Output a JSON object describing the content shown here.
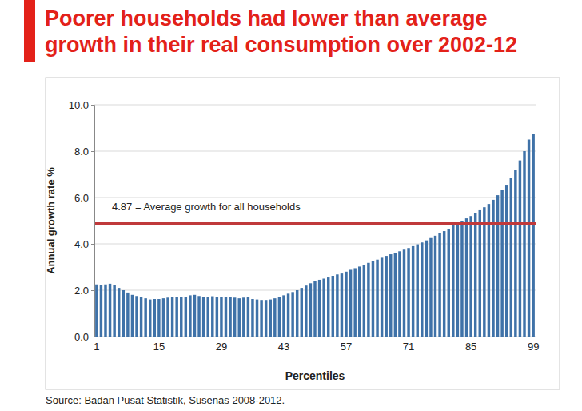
{
  "chart_data": {
    "type": "bar",
    "title": "Poorer households had lower than average growth in their real consumption over 2002-12",
    "x_label": "Percentiles",
    "y_label": "Annual growth rate %",
    "source": "Source: Badan Pusat Statistik, Susenas 2008-2012.",
    "categories": [
      "1",
      null,
      null,
      null,
      null,
      null,
      null,
      null,
      null,
      null,
      null,
      null,
      null,
      null,
      "15",
      null,
      null,
      null,
      null,
      null,
      null,
      null,
      null,
      null,
      null,
      null,
      null,
      null,
      "29",
      null,
      null,
      null,
      null,
      null,
      null,
      null,
      null,
      null,
      null,
      null,
      null,
      null,
      "43",
      null,
      null,
      null,
      null,
      null,
      null,
      null,
      null,
      null,
      null,
      null,
      null,
      null,
      "57",
      null,
      null,
      null,
      null,
      null,
      null,
      null,
      null,
      null,
      null,
      null,
      null,
      null,
      "71",
      null,
      null,
      null,
      null,
      null,
      null,
      null,
      null,
      null,
      null,
      null,
      null,
      null,
      "85",
      null,
      null,
      null,
      null,
      null,
      null,
      null,
      null,
      null,
      null,
      null,
      null,
      null,
      "99"
    ],
    "values": [
      2.25,
      2.22,
      2.25,
      2.28,
      2.22,
      2.1,
      2.0,
      1.9,
      1.8,
      1.75,
      1.72,
      1.65,
      1.6,
      1.62,
      1.62,
      1.65,
      1.68,
      1.7,
      1.72,
      1.7,
      1.72,
      1.78,
      1.8,
      1.75,
      1.7,
      1.72,
      1.74,
      1.72,
      1.7,
      1.72,
      1.72,
      1.68,
      1.65,
      1.68,
      1.7,
      1.62,
      1.6,
      1.58,
      1.58,
      1.6,
      1.65,
      1.72,
      1.78,
      1.85,
      1.92,
      2.0,
      2.1,
      2.2,
      2.3,
      2.4,
      2.45,
      2.5,
      2.55,
      2.62,
      2.68,
      2.72,
      2.8,
      2.88,
      2.95,
      3.02,
      3.1,
      3.18,
      3.25,
      3.32,
      3.4,
      3.48,
      3.55,
      3.6,
      3.68,
      3.75,
      3.82,
      3.9,
      3.98,
      4.06,
      4.15,
      4.25,
      4.35,
      4.45,
      4.55,
      4.65,
      4.8,
      4.9,
      5.0,
      5.1,
      5.2,
      5.32,
      5.45,
      5.58,
      5.72,
      5.9,
      6.1,
      6.32,
      6.55,
      6.85,
      7.2,
      7.6,
      8.0,
      8.5,
      8.75
    ],
    "color": "#3f72a8",
    "average": {
      "value": 4.87,
      "label": "4.87 = Average growth for all households",
      "color": "#c0393b"
    },
    "ylim": [
      0,
      10
    ],
    "yticks": [
      {
        "value": 0,
        "label": "0.0"
      },
      {
        "value": 2,
        "label": "2.0"
      },
      {
        "value": 4,
        "label": "4.0"
      },
      {
        "value": 6,
        "label": "6.0"
      },
      {
        "value": 8,
        "label": "8.0"
      },
      {
        "value": 10,
        "label": "10.0"
      }
    ],
    "grid": true
  }
}
